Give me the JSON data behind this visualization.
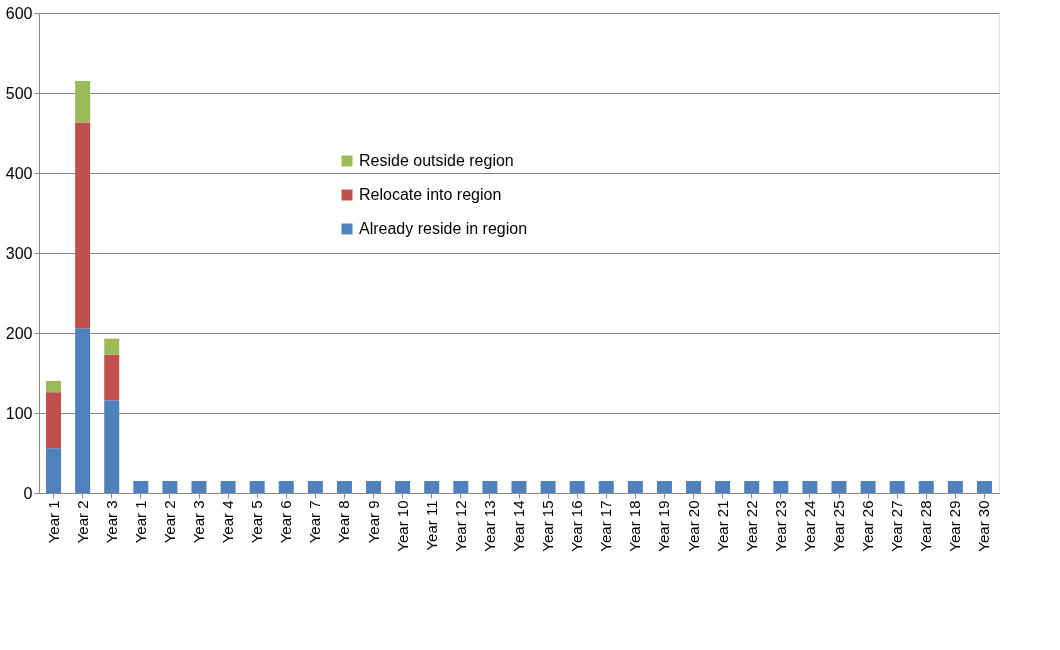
{
  "chart_data": {
    "type": "bar",
    "stacked": true,
    "categories": [
      "Year 1",
      "Year 2",
      "Year 3",
      "Year 1",
      "Year 2",
      "Year 3",
      "Year 4",
      "Year 5",
      "Year 6",
      "Year 7",
      "Year 8",
      "Year 9",
      "Year 10",
      "Year 11",
      "Year 12",
      "Year 13",
      "Year 14",
      "Year 15",
      "Year 16",
      "Year 17",
      "Year 18",
      "Year 19",
      "Year 20",
      "Year 21",
      "Year 22",
      "Year 23",
      "Year 24",
      "Year 25",
      "Year 26",
      "Year 27",
      "Year 28",
      "Year 29",
      "Year 30"
    ],
    "series": [
      {
        "name": "Already reside in region",
        "color": "#4f81bd",
        "values": [
          56,
          206,
          116,
          15,
          15,
          15,
          15,
          15,
          15,
          15,
          15,
          15,
          15,
          15,
          15,
          15,
          15,
          15,
          15,
          15,
          15,
          15,
          15,
          15,
          15,
          15,
          15,
          15,
          15,
          15,
          15,
          15,
          15
        ]
      },
      {
        "name": "Relocate into region",
        "color": "#c0504d",
        "values": [
          70,
          257,
          57,
          null,
          null,
          null,
          null,
          null,
          null,
          null,
          null,
          null,
          null,
          null,
          null,
          null,
          null,
          null,
          null,
          null,
          null,
          null,
          null,
          null,
          null,
          null,
          null,
          null,
          null,
          null,
          null,
          null,
          null
        ]
      },
      {
        "name": "Reside outside region",
        "color": "#9bbb59",
        "values": [
          14,
          52,
          20,
          null,
          null,
          null,
          null,
          null,
          null,
          null,
          null,
          null,
          null,
          null,
          null,
          null,
          null,
          null,
          null,
          null,
          null,
          null,
          null,
          null,
          null,
          null,
          null,
          null,
          null,
          null,
          null,
          null,
          null
        ]
      }
    ],
    "ylim": [
      0,
      600
    ],
    "yticks": [
      0,
      100,
      200,
      300,
      400,
      500,
      600
    ],
    "grid": "y",
    "legend": "top"
  }
}
